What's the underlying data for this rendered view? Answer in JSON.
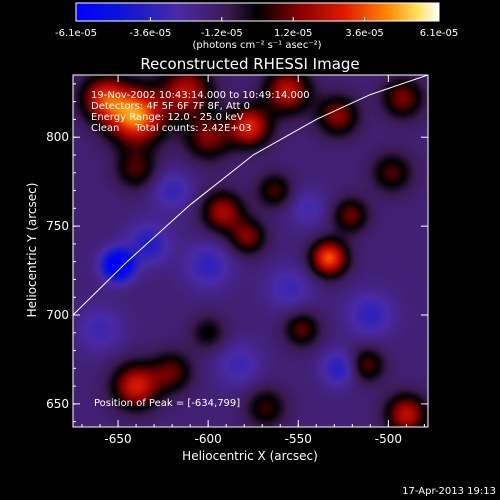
{
  "chart_data": {
    "type": "heatmap",
    "title": "Reconstructed RHESSI Image",
    "xlabel": "Heliocentric X (arcsec)",
    "ylabel": "Heliocentric Y (arcsec)",
    "xlim": [
      -675,
      -478
    ],
    "ylim": [
      637,
      835
    ],
    "x_ticks": [
      -650,
      -600,
      -550,
      -500
    ],
    "x_tick_labels": [
      "-650",
      "-600",
      "-550",
      "-500"
    ],
    "y_ticks": [
      650,
      700,
      750,
      800
    ],
    "y_tick_labels": [
      "650",
      "700",
      "750",
      "800"
    ],
    "colorbar": {
      "min": -6.1e-05,
      "max": 6.1e-05,
      "ticks": [
        -6.1e-05,
        -3.6e-05,
        -1.2e-05,
        1.2e-05,
        3.6e-05,
        6.1e-05
      ],
      "tick_labels": [
        "-6.1e-05",
        "-3.6e-05",
        "-1.2e-05",
        "1.2e-05",
        "3.6e-05",
        "6.1e-05"
      ],
      "unit_label": "(photons cm⁻² s⁻¹ asec⁻²)"
    },
    "annotations": [
      "19-Nov-2002 10:43:14.000 to 10:49:14.000",
      "Detectors: 4F 5F 6F 7F 8F, Att 0",
      "Energy Range: 12.0 - 25.0 keV",
      "Clean     Total counts: 2.42E+03"
    ],
    "peak_label": "Position of Peak = [-634,799]",
    "peak_position": [
      -634,
      799
    ],
    "limb_curve": {
      "x": [
        -675,
        -645,
        -610,
        -575,
        -540,
        -510,
        -478
      ],
      "y": [
        700,
        730,
        762,
        790,
        810,
        824,
        835
      ]
    },
    "blobs": [
      {
        "x": -640,
        "y": 812,
        "amp": 6.1e-05,
        "s": 11
      },
      {
        "x": -658,
        "y": 822,
        "amp": 4.2e-05,
        "s": 9
      },
      {
        "x": -612,
        "y": 826,
        "amp": 3.8e-05,
        "s": 10
      },
      {
        "x": -600,
        "y": 800,
        "amp": 3e-05,
        "s": 9
      },
      {
        "x": -577,
        "y": 806,
        "amp": 4.6e-05,
        "s": 8
      },
      {
        "x": -556,
        "y": 826,
        "amp": 4e-05,
        "s": 9
      },
      {
        "x": -528,
        "y": 812,
        "amp": 3.2e-05,
        "s": 8
      },
      {
        "x": -492,
        "y": 822,
        "amp": 3e-05,
        "s": 8
      },
      {
        "x": -640,
        "y": 782,
        "amp": 2.4e-05,
        "s": 8
      },
      {
        "x": -592,
        "y": 758,
        "amp": 3.6e-05,
        "s": 8
      },
      {
        "x": -563,
        "y": 770,
        "amp": 2.4e-05,
        "s": 7
      },
      {
        "x": -578,
        "y": 744,
        "amp": 3e-05,
        "s": 7
      },
      {
        "x": -533,
        "y": 732,
        "amp": 5.4e-05,
        "s": 7
      },
      {
        "x": -521,
        "y": 756,
        "amp": 2.8e-05,
        "s": 7
      },
      {
        "x": -498,
        "y": 780,
        "amp": 2.4e-05,
        "s": 8
      },
      {
        "x": -548,
        "y": 692,
        "amp": 2.6e-05,
        "s": 7
      },
      {
        "x": -600,
        "y": 690,
        "amp": 1.8e-05,
        "s": 7
      },
      {
        "x": -640,
        "y": 660,
        "amp": 4.4e-05,
        "s": 9
      },
      {
        "x": -620,
        "y": 668,
        "amp": 2.6e-05,
        "s": 8
      },
      {
        "x": -568,
        "y": 648,
        "amp": 2.2e-05,
        "s": 8
      },
      {
        "x": -512,
        "y": 672,
        "amp": 2.6e-05,
        "s": 7
      },
      {
        "x": -490,
        "y": 644,
        "amp": 4e-05,
        "s": 8
      },
      {
        "x": -650,
        "y": 728,
        "amp": -5.8e-05,
        "s": 6
      },
      {
        "x": -633,
        "y": 740,
        "amp": -2.2e-05,
        "s": 8
      },
      {
        "x": -600,
        "y": 728,
        "amp": -1.8e-05,
        "s": 9
      },
      {
        "x": -620,
        "y": 770,
        "amp": -1.6e-05,
        "s": 8
      },
      {
        "x": -555,
        "y": 715,
        "amp": -1.4e-05,
        "s": 9
      },
      {
        "x": -510,
        "y": 700,
        "amp": -1.8e-05,
        "s": 9
      },
      {
        "x": -583,
        "y": 672,
        "amp": -1.4e-05,
        "s": 9
      },
      {
        "x": -527,
        "y": 670,
        "amp": -2.2e-05,
        "s": 7
      },
      {
        "x": -660,
        "y": 692,
        "amp": -1.4e-05,
        "s": 9
      },
      {
        "x": -545,
        "y": 760,
        "amp": -1.2e-05,
        "s": 8
      }
    ]
  },
  "timestamp": "17-Apr-2013 19:13",
  "colors": {
    "background": "#000000",
    "limb": "#ffffff",
    "text": "#ffffff"
  }
}
